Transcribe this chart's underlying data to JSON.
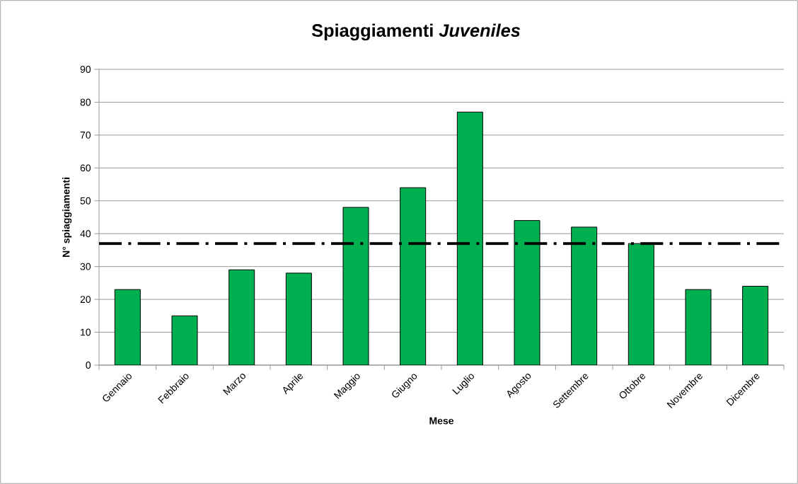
{
  "chart_data": {
    "type": "bar",
    "title": "Spiaggiamenti *Juveniles*",
    "xlabel": "Mese",
    "ylabel": "N° spiaggiamenti",
    "categories": [
      "Gennaio",
      "Febbraio",
      "Marzo",
      "Aprile",
      "Maggio",
      "Giugno",
      "Luglio",
      "Agosto",
      "Settembre",
      "Ottobre",
      "Novembre",
      "Dicembre"
    ],
    "values": [
      23,
      15,
      29,
      28,
      48,
      54,
      77,
      44,
      42,
      37,
      23,
      24
    ],
    "color": "#00b050",
    "ylim": [
      0,
      90
    ],
    "yticks": [
      0,
      10,
      20,
      30,
      40,
      50,
      60,
      70,
      80,
      90
    ],
    "grid": "y",
    "ref_lines": [
      {
        "axis": "y",
        "value": 37,
        "color": "#000000",
        "line_style": "dashdot"
      }
    ]
  }
}
